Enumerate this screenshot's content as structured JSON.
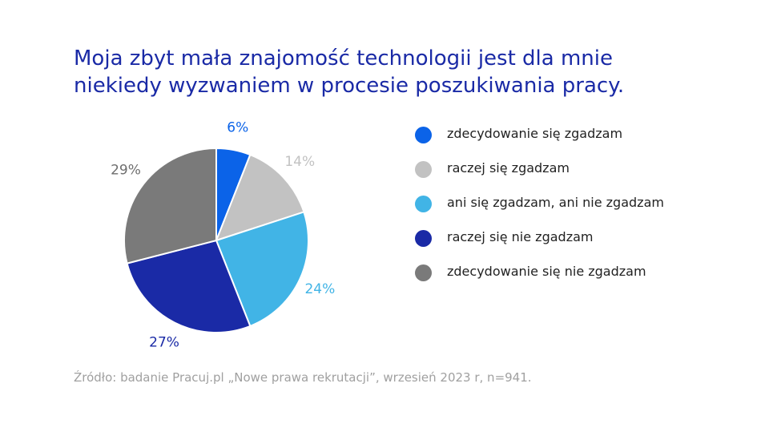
{
  "title_lines": [
    "Moja zbyt mała znajomość technologii jest dla mnie",
    "niekiedy wyzwaniem w procesie poszukiwania pracy."
  ],
  "source": "Źródło: badanie Pracuj.pl „Nowe prawa rekrutacji”, wrzesień 2023 r, n=941.",
  "chart_data": {
    "type": "pie",
    "title": "Moja zbyt mała znajomość technologii jest dla mnie niekiedy wyzwaniem w procesie poszukiwania pracy.",
    "unit": "%",
    "start_angle": "12 o'clock",
    "direction": "clockwise",
    "legend_position": "right",
    "slices": [
      {
        "name": "zdecydowanie się zgadzam",
        "value": 6,
        "label": "6%",
        "color": "#0b63e8"
      },
      {
        "name": "raczej się zgadzam",
        "value": 14,
        "label": "14%",
        "color": "#c2c2c2"
      },
      {
        "name": "ani się zgadzam, ani nie zgadzam",
        "value": 24,
        "label": "24%",
        "color": "#41b4e6"
      },
      {
        "name": "raczej się nie zgadzam",
        "value": 27,
        "label": "27%",
        "color": "#1a2aa6"
      },
      {
        "name": "zdecydowanie się nie zgadzam",
        "value": 29,
        "label": "29%",
        "color": "#7a7a7a"
      }
    ]
  }
}
